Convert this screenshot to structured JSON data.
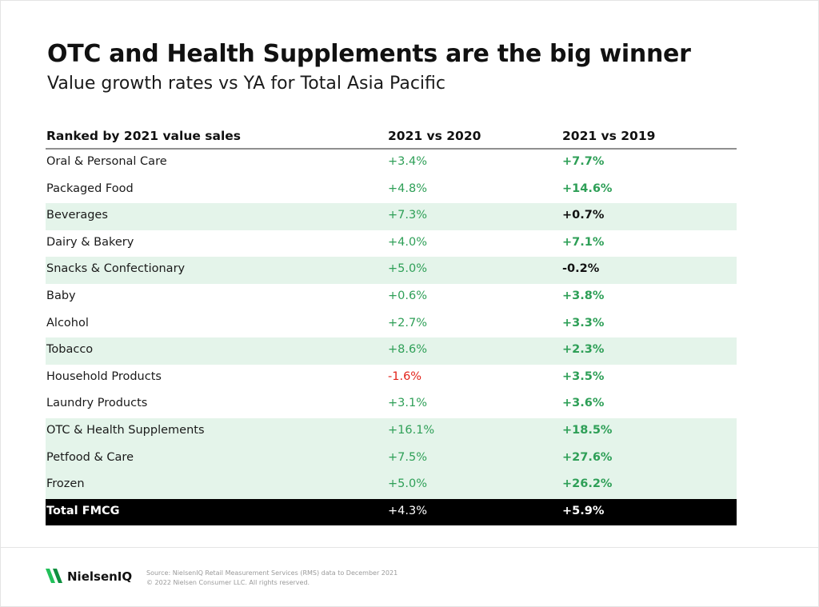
{
  "title": "OTC and Health Supplements are the big winner",
  "subtitle": "Value growth rates vs YA for Total Asia Pacific",
  "colors": {
    "positive": "#2e9f57",
    "negative": "#e2231a",
    "shaded_row": "#e4f4ea",
    "total_row": "#000000"
  },
  "chart_data": {
    "type": "table",
    "columns": [
      "Ranked by 2021 value sales",
      "2021 vs 2020",
      "2021 vs 2019"
    ],
    "rows": [
      {
        "category": "Oral & Personal Care",
        "v2020": "+3.4%",
        "v2019": "+7.7%",
        "shaded": false
      },
      {
        "category": "Packaged Food",
        "v2020": "+4.8%",
        "v2019": "+14.6%",
        "shaded": false
      },
      {
        "category": "Beverages",
        "v2020": "+7.3%",
        "v2019": "+0.7%",
        "shaded": true
      },
      {
        "category": "Dairy & Bakery",
        "v2020": "+4.0%",
        "v2019": "+7.1%",
        "shaded": false
      },
      {
        "category": "Snacks & Confectionary",
        "v2020": "+5.0%",
        "v2019": "-0.2%",
        "shaded": true
      },
      {
        "category": "Baby",
        "v2020": "+0.6%",
        "v2019": "+3.8%",
        "shaded": false
      },
      {
        "category": "Alcohol",
        "v2020": "+2.7%",
        "v2019": "+3.3%",
        "shaded": false
      },
      {
        "category": "Tobacco",
        "v2020": "+8.6%",
        "v2019": "+2.3%",
        "shaded": true
      },
      {
        "category": "Household Products",
        "v2020": "-1.6%",
        "v2019": "+3.5%",
        "shaded": false
      },
      {
        "category": "Laundry Products",
        "v2020": "+3.1%",
        "v2019": "+3.6%",
        "shaded": false
      },
      {
        "category": "OTC & Health Supplements",
        "v2020": "+16.1%",
        "v2019": "+18.5%",
        "shaded": true
      },
      {
        "category": "Petfood & Care",
        "v2020": "+7.5%",
        "v2019": "+27.6%",
        "shaded": true
      },
      {
        "category": "Frozen",
        "v2020": "+5.0%",
        "v2019": "+26.2%",
        "shaded": true
      }
    ],
    "total": {
      "category": "Total FMCG",
      "v2020": "+4.3%",
      "v2019": "+5.9%"
    },
    "neutral_v2019_rows": [
      "Beverages",
      "Snacks & Confectionary"
    ]
  },
  "footer": {
    "logo_text": "NielsenIQ",
    "logo_icon": "nielseniq-logo-icon",
    "source": "Source: NielsenIQ Retail Measurement Services (RMS) data to December 2021",
    "copyright": "© 2022 Nielsen Consumer LLC. All rights reserved."
  }
}
